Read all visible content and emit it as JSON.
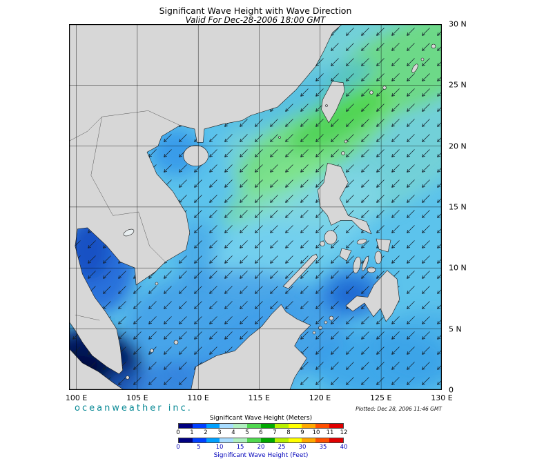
{
  "header": {
    "title": "Significant Wave Height with Wave Direction",
    "subtitle": "Valid For Dec-28-2006 18:00 GMT"
  },
  "footer": {
    "branding": "oceanweather inc.",
    "plotted": "Plotted: Dec 28, 2006 11:46 GMT"
  },
  "axes": {
    "x_ticks": [
      "100 E",
      "105 E",
      "110 E",
      "115 E",
      "120 E",
      "125 E",
      "130 E"
    ],
    "y_ticks": [
      "30 N",
      "25 N",
      "20 N",
      "15 N",
      "10 N",
      "5 N",
      "0"
    ]
  },
  "legend": {
    "meters_title": "Significant Wave Height (Meters)",
    "meters_ticks": [
      "0",
      "1",
      "2",
      "3",
      "4",
      "5",
      "6",
      "7",
      "8",
      "9",
      "10",
      "11",
      "12"
    ],
    "feet_title": "Significant Wave Height (Feet)",
    "feet_ticks": [
      "0",
      "5",
      "10",
      "15",
      "20",
      "25",
      "30",
      "35",
      "40"
    ],
    "colors": [
      "#000080",
      "#0040ff",
      "#00a0ff",
      "#a8dcff",
      "#b0f0c0",
      "#50d850",
      "#00a800",
      "#b8f000",
      "#ffff00",
      "#ffa800",
      "#ff5000",
      "#e00000"
    ]
  },
  "colors": {
    "branding": "#0a8a96",
    "feet_title": "#0000bb",
    "feet_ticks": "#0000bb"
  },
  "map": {
    "wave_arrows_direction": "southwest",
    "grid_interval_degrees": 5
  }
}
